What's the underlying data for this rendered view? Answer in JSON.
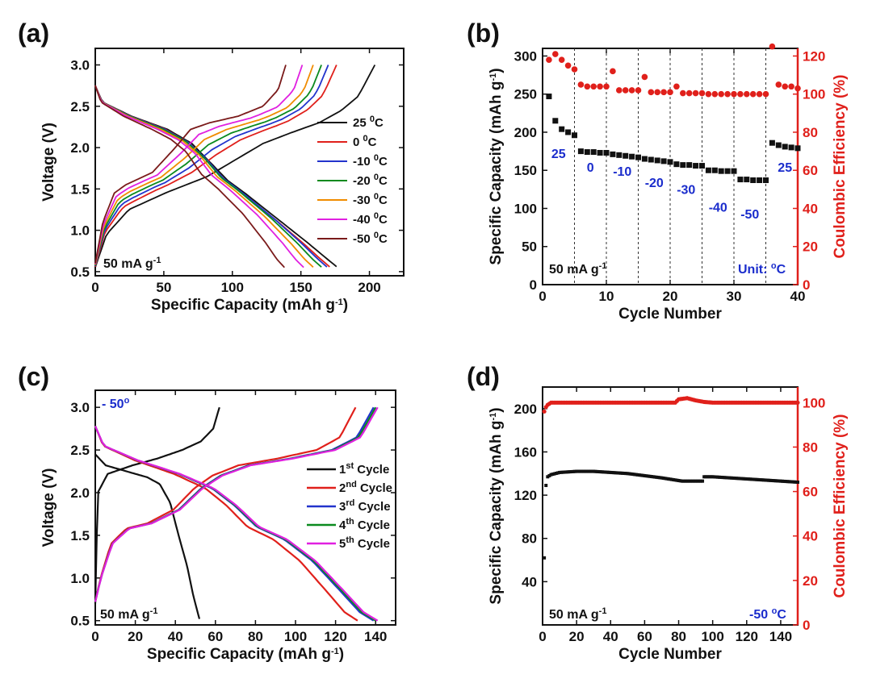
{
  "chart_data": [
    {
      "id": "a",
      "panel_label": "(a)",
      "type": "line",
      "xlabel": "Specific Capacity (mAh g",
      "xlabel_sup": "-1",
      "xlabel_end": ")",
      "ylabel": "Voltage (V)",
      "xlim": [
        0,
        225
      ],
      "ylim": [
        0.45,
        3.2
      ],
      "xticks": [
        0,
        50,
        100,
        150,
        200
      ],
      "yticks": [
        0.5,
        1.0,
        1.5,
        2.0,
        2.5,
        3.0
      ],
      "ytick_labels": [
        "0.5",
        "1.0",
        "1.5",
        "2.0",
        "2.5",
        "3.0"
      ],
      "annotation": "50 mA g",
      "annotation_sup": "-1",
      "series": [
        {
          "name": "25",
          "color": "#111111",
          "charge_cap": 204,
          "discharge_cap": 176
        },
        {
          "name": "0",
          "color": "#e0201b",
          "charge_cap": 176,
          "discharge_cap": 171
        },
        {
          "name": "-10",
          "color": "#2233cc",
          "charge_cap": 170,
          "discharge_cap": 169
        },
        {
          "name": "-20",
          "color": "#0a8a1e",
          "charge_cap": 165,
          "discharge_cap": 165
        },
        {
          "name": "-30",
          "color": "#f08c00",
          "charge_cap": 159,
          "discharge_cap": 159
        },
        {
          "name": "-40",
          "color": "#e020e0",
          "charge_cap": 151,
          "discharge_cap": 152
        },
        {
          "name": "-50",
          "color": "#7a1a1a",
          "charge_cap": 139,
          "discharge_cap": 138
        }
      ],
      "legend_unit": "0",
      "legend_unit_end": "C"
    },
    {
      "id": "b",
      "panel_label": "(b)",
      "type": "scatter",
      "xlabel": "Cycle Number",
      "ylabel": "Specific Capacity (mAh g",
      "ylabel_sup": "-1",
      "ylabel_end": ")",
      "y2label": "Coulombic Efficiency (%)",
      "xlim": [
        0,
        40
      ],
      "ylim": [
        0,
        310
      ],
      "y2lim": [
        0,
        124
      ],
      "xticks": [
        0,
        10,
        20,
        30,
        40
      ],
      "yticks": [
        0,
        50,
        100,
        150,
        200,
        250,
        300
      ],
      "y2ticks": [
        0,
        20,
        40,
        60,
        80,
        100,
        120
      ],
      "vlines": [
        5,
        10,
        15,
        20,
        25,
        30,
        35
      ],
      "capacity": [
        247,
        215,
        204,
        200,
        196,
        175,
        174,
        174,
        173,
        173,
        171,
        170,
        169,
        168,
        167,
        165,
        164,
        163,
        162,
        161,
        158,
        157,
        157,
        156,
        156,
        150,
        150,
        149,
        149,
        149,
        138,
        138,
        137,
        137,
        137,
        186,
        183,
        181,
        180,
        179
      ],
      "efficiency": [
        118,
        121,
        118,
        115,
        113,
        105,
        104,
        104,
        104,
        104,
        112,
        102,
        102,
        102,
        102,
        109,
        101,
        101,
        101,
        101,
        104,
        100.5,
        100.5,
        100.5,
        100.5,
        100,
        100,
        100,
        100,
        100,
        100,
        100,
        100,
        100,
        100,
        125,
        105,
        104,
        104,
        103
      ],
      "temp_labels": [
        {
          "text": "25",
          "x": 2.5,
          "y": 166
        },
        {
          "text": "0",
          "x": 7.5,
          "y": 148
        },
        {
          "text": "-10",
          "x": 12.5,
          "y": 143
        },
        {
          "text": "-20",
          "x": 17.5,
          "y": 128
        },
        {
          "text": "-30",
          "x": 22.5,
          "y": 119
        },
        {
          "text": "-40",
          "x": 27.5,
          "y": 96
        },
        {
          "text": "-50",
          "x": 32.5,
          "y": 87
        },
        {
          "text": "25",
          "x": 38,
          "y": 148
        }
      ],
      "annotation": "50 mA g",
      "annotation_sup": "-1",
      "unit_note": "Unit: ",
      "unit_note_sup": "o",
      "unit_note_end": "C"
    },
    {
      "id": "c",
      "panel_label": "(c)",
      "type": "line",
      "xlabel": "Specific Capacity (mAh g",
      "xlabel_sup": "-1",
      "xlabel_end": ")",
      "ylabel": "Voltage (V)",
      "xlim": [
        0,
        150
      ],
      "ylim": [
        0.45,
        3.2
      ],
      "xticks": [
        0,
        20,
        40,
        60,
        80,
        100,
        120,
        140
      ],
      "yticks": [
        0.5,
        1.0,
        1.5,
        2.0,
        2.5,
        3.0
      ],
      "ytick_labels": [
        "0.5",
        "1.0",
        "1.5",
        "2.0",
        "2.5",
        "3.0"
      ],
      "corner_note": "- 50",
      "corner_note_sup": "o",
      "annotation": "50 mA g",
      "annotation_sup": "-1",
      "series": [
        {
          "name": "1",
          "sup": "st",
          "suffix": " Cycle",
          "color": "#111111",
          "charge_cap": 62,
          "discharge_cap": 52
        },
        {
          "name": "2",
          "sup": "nd",
          "suffix": " Cycle",
          "color": "#e0201b",
          "charge_cap": 130,
          "discharge_cap": 131
        },
        {
          "name": "3",
          "sup": "rd",
          "suffix": " Cycle",
          "color": "#2233cc",
          "charge_cap": 139,
          "discharge_cap": 139
        },
        {
          "name": "4",
          "sup": "th",
          "suffix": " Cycle",
          "color": "#0a8a1e",
          "charge_cap": 140,
          "discharge_cap": 140
        },
        {
          "name": "5",
          "sup": "th",
          "suffix": " Cycle",
          "color": "#e020e0",
          "charge_cap": 141,
          "discharge_cap": 141
        }
      ]
    },
    {
      "id": "d",
      "panel_label": "(d)",
      "type": "scatter",
      "xlabel": "Cycle Number",
      "ylabel": "Specific Capacity (mAh g",
      "ylabel_sup": "-1",
      "ylabel_end": ")",
      "y2label": "Coulombic Efficiency (%)",
      "xlim": [
        0,
        150
      ],
      "ylim": [
        0,
        220
      ],
      "y2lim": [
        0,
        107
      ],
      "xticks": [
        0,
        20,
        40,
        60,
        80,
        100,
        120,
        140
      ],
      "yticks": [
        40,
        80,
        120,
        160,
        200
      ],
      "y2ticks": [
        0,
        20,
        40,
        60,
        80,
        100
      ],
      "capacity_points": [
        [
          1,
          62
        ],
        [
          2,
          129
        ],
        [
          3,
          137
        ],
        [
          5,
          139
        ],
        [
          10,
          141
        ],
        [
          20,
          142
        ],
        [
          30,
          142
        ],
        [
          40,
          141
        ],
        [
          50,
          140
        ],
        [
          60,
          138
        ],
        [
          70,
          136
        ],
        [
          78,
          134
        ],
        [
          82,
          133
        ],
        [
          90,
          133
        ],
        [
          94,
          133
        ],
        [
          95,
          137
        ],
        [
          100,
          137
        ],
        [
          110,
          136
        ],
        [
          120,
          135
        ],
        [
          130,
          134
        ],
        [
          140,
          133
        ],
        [
          150,
          132
        ]
      ],
      "efficiency_points": [
        [
          1,
          96
        ],
        [
          2,
          98
        ],
        [
          3,
          99
        ],
        [
          5,
          100
        ],
        [
          20,
          100
        ],
        [
          40,
          100
        ],
        [
          60,
          100
        ],
        [
          78,
          100
        ],
        [
          80,
          101.5
        ],
        [
          85,
          102
        ],
        [
          90,
          101
        ],
        [
          95,
          100.3
        ],
        [
          100,
          100
        ],
        [
          120,
          100
        ],
        [
          150,
          100
        ]
      ],
      "annotation": "50 mA g",
      "annotation_sup": "-1",
      "temp_note": "-50 ",
      "temp_note_sup": "o",
      "temp_note_end": "C"
    }
  ],
  "colors": {
    "capacity_marker": "#111111",
    "efficiency_marker": "#e0201b",
    "efficiency_axis": "#e0201b",
    "temp_label": "#1a2ccc"
  }
}
